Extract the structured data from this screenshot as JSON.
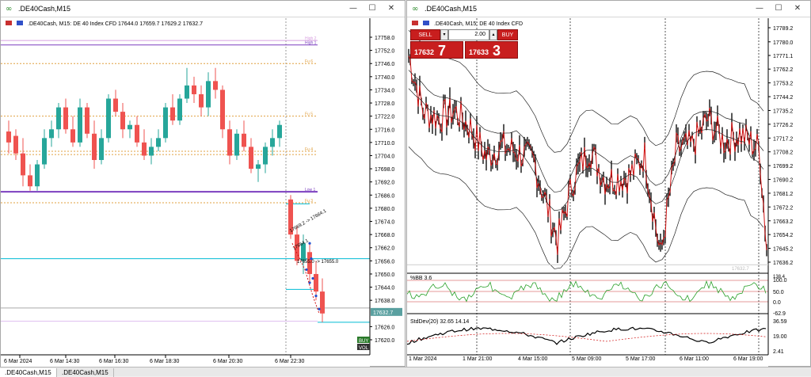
{
  "windows": [
    {
      "title": ".DE40Cash,M15",
      "header": ".DE40Cash, M15:  DE 40 Index CFD   17644.0 17659.7 17629.2 17632.7",
      "price_labels": [
        "17758.0",
        "17752.0",
        "17746.0",
        "17740.0",
        "17734.0",
        "17728.0",
        "17722.0",
        "17716.0",
        "17710.0",
        "17704.0",
        "17698.0",
        "17692.0",
        "17686.0",
        "17680.0",
        "17674.0",
        "17668.0",
        "17662.0",
        "17656.0",
        "17650.0",
        "17644.0",
        "17638.0",
        "17632.7",
        "17626.0",
        "17620.0"
      ],
      "current_price": "17632.7",
      "time_labels": [
        "6 Mar 2024",
        "6 Mar 14:30",
        "6 Mar 16:30",
        "6 Mar 18:30",
        "6 Mar 20:30",
        "6 Mar 22:30"
      ],
      "levels": [
        "High 2",
        "High 1",
        "Fu 6",
        "Fu 5",
        "Fu 4",
        "Low 1",
        "Fu 3"
      ],
      "trade_labels": [
        "17669.2 -> 17664.1",
        "17664.1",
        "17655.0 -> 17655.0"
      ],
      "badges": [
        "BUY",
        "VOL"
      ]
    },
    {
      "title": ".DE40Cash,M15",
      "header": ".DE40Cash, M15:  DE 40 Index CFD",
      "trade_panel": {
        "sell": "SELL",
        "buy": "BUY",
        "lot": "2.00",
        "sell_small": "17632",
        "sell_big": "7",
        "buy_small": "17633",
        "buy_big": "3"
      },
      "price_labels": [
        "17789.2",
        "17780.0",
        "17771.1",
        "17762.2",
        "17753.2",
        "17744.2",
        "17735.2",
        "17726.2",
        "17717.2",
        "17708.2",
        "17699.2",
        "17690.2",
        "17681.2",
        "17672.2",
        "17663.2",
        "17654.2",
        "17645.2",
        "17636.2"
      ],
      "current_price": "17632.7",
      "pctb_label": "%BB  3.6",
      "pctb_scale": [
        "100.0",
        "50.0",
        "0.0",
        "-62.9"
      ],
      "pctb_top": "138.4",
      "stddev_label": "StdDev(20) 32.65 14.14",
      "stddev_scale": [
        "36.59",
        "19.00",
        "2.41"
      ],
      "time_labels": [
        "1 Mar 2024",
        "1 Mar 21:00",
        "4 Mar 15:00",
        "5 Mar 09:00",
        "5 Mar 17:00",
        "6 Mar 11:00",
        "6 Mar 19:00"
      ]
    }
  ],
  "tabs": [
    ".DE40Cash,M15",
    ".DE40Cash,M15"
  ],
  "window_controls": {
    "minimize": "—",
    "maximize": "☐",
    "close": "✕"
  },
  "colors": {
    "bull": "#26a69a",
    "bear": "#ef5350",
    "cyan": "#00bcd4",
    "purple": "#7b3fbf",
    "orange": "#e0a040",
    "red": "#d01010",
    "green": "#2aa02a"
  }
}
